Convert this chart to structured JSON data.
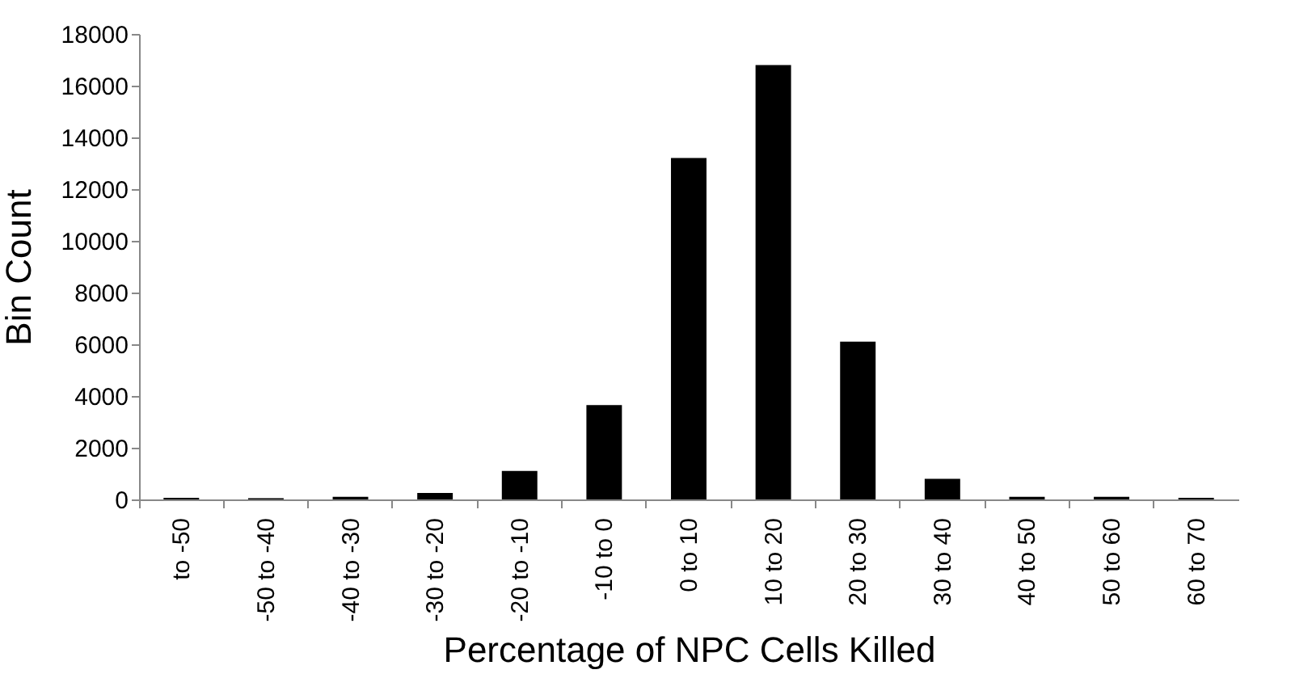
{
  "chart_data": {
    "type": "bar",
    "xlabel": "Percentage of NPC Cells Killed",
    "ylabel": "Bin Count",
    "categories": [
      "to -50",
      "-50 to -40",
      "-40 to -30",
      "-30 to -20",
      "-20 to -10",
      "-10 to 0",
      "0 to 10",
      "10 to 20",
      "20 to 30",
      "30 to 40",
      "40 to 50",
      "50 to 60",
      "60 to 70"
    ],
    "values": [
      60,
      50,
      100,
      250,
      1100,
      3650,
      13200,
      16800,
      6100,
      800,
      100,
      100,
      60
    ],
    "color": "#000000",
    "ylim": [
      0,
      18000
    ],
    "yticks": [
      0,
      2000,
      4000,
      6000,
      8000,
      10000,
      12000,
      14000,
      16000,
      18000
    ],
    "grid": false
  }
}
